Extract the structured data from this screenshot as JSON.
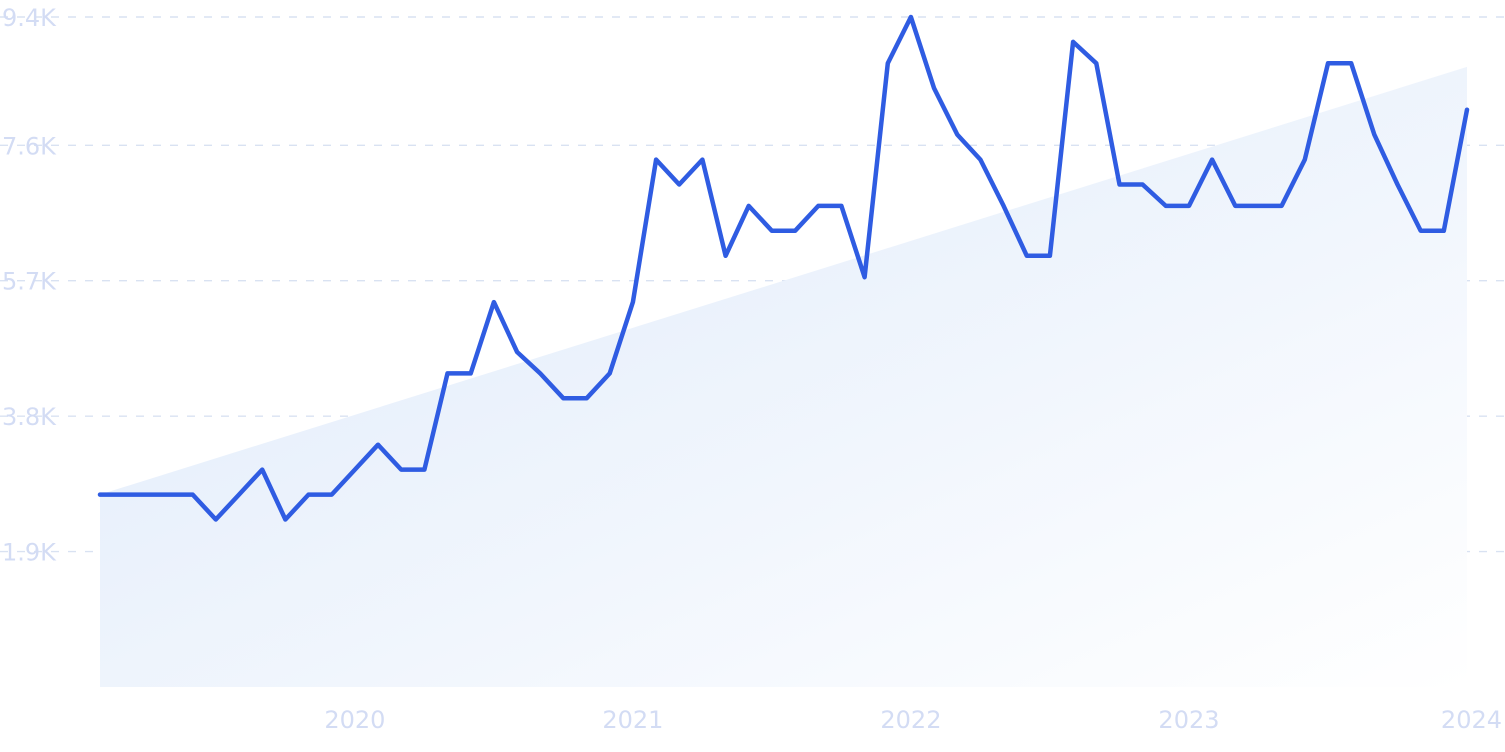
{
  "chart_data": {
    "type": "line",
    "title": "",
    "xlabel": "",
    "ylabel": "",
    "x_start": "2019-02",
    "x_ticks": [
      "2020",
      "2021",
      "2022",
      "2023",
      "2024"
    ],
    "y_ticks": [
      "1.9K",
      "3.8K",
      "5.7K",
      "7.6K",
      "9.4K"
    ],
    "y_tick_values": [
      1900,
      3800,
      5700,
      7600,
      9400
    ],
    "ylim": [
      0,
      9400
    ],
    "xlim": [
      "2019-02",
      "2024-01"
    ],
    "grid": "horizontal dashed",
    "legend": "none",
    "series": [
      {
        "values": [
          2700,
          2700,
          2700,
          2700,
          2700,
          2350,
          2700,
          3050,
          2350,
          2700,
          2700,
          3050,
          3400,
          3050,
          3050,
          4400,
          4400,
          5400,
          4700,
          4400,
          4050,
          4050,
          4400,
          5400,
          7400,
          7050,
          7400,
          6050,
          6750,
          6400,
          6400,
          6750,
          6750,
          5750,
          8750,
          9400,
          8400,
          7750,
          7400,
          6750,
          6050,
          6050,
          9050,
          8750,
          7050,
          7050,
          6750,
          6750,
          7400,
          6750,
          6750,
          6750,
          7400,
          8750,
          8750,
          7750,
          7050,
          6400,
          6400,
          8100
        ]
      }
    ],
    "trend": {
      "start_value": 2700,
      "end_value": 8700
    },
    "colors": {
      "line": "#2f5ce2",
      "area_light": "#dde9fa",
      "area_fade": "#ffffff",
      "grid": "#d9e2f2",
      "tick_text": "#d3dcf4"
    }
  }
}
